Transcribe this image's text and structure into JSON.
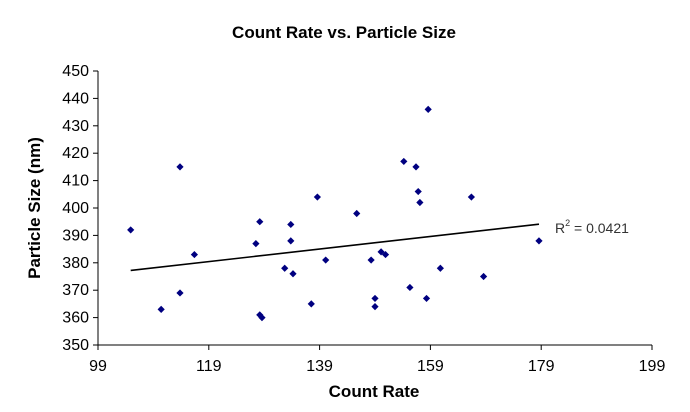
{
  "chart_data": {
    "type": "scatter",
    "title": "Count Rate vs.  Particle Size",
    "xlabel": "Count Rate",
    "ylabel": "Particle Size (nm)",
    "xlim": [
      99,
      199
    ],
    "ylim": [
      350,
      450
    ],
    "xticks": [
      99,
      119,
      139,
      159,
      179,
      199
    ],
    "yticks": [
      350,
      360,
      370,
      380,
      390,
      400,
      410,
      420,
      430,
      440,
      450
    ],
    "grid": false,
    "marker_color": "#000080",
    "series": [
      {
        "points": [
          [
            104.9,
            392
          ],
          [
            110.4,
            363
          ],
          [
            113.8,
            415
          ],
          [
            113.8,
            369
          ],
          [
            116.4,
            383
          ],
          [
            127.5,
            387
          ],
          [
            128.2,
            395
          ],
          [
            128.2,
            361
          ],
          [
            128.6,
            360
          ],
          [
            132.7,
            378
          ],
          [
            133.8,
            394
          ],
          [
            133.8,
            388
          ],
          [
            134.2,
            376
          ],
          [
            137.5,
            365
          ],
          [
            138.6,
            404
          ],
          [
            140.1,
            381
          ],
          [
            145.7,
            398
          ],
          [
            148.3,
            381
          ],
          [
            149.0,
            367
          ],
          [
            149.0,
            364
          ],
          [
            150.1,
            384
          ],
          [
            150.9,
            383
          ],
          [
            154.2,
            417
          ],
          [
            155.3,
            371
          ],
          [
            156.4,
            415
          ],
          [
            156.8,
            406
          ],
          [
            157.1,
            402
          ],
          [
            158.3,
            367
          ],
          [
            158.6,
            436
          ],
          [
            160.8,
            378
          ],
          [
            166.4,
            404
          ],
          [
            168.6,
            375
          ],
          [
            178.6,
            388
          ]
        ]
      }
    ],
    "trendline": {
      "type": "linear",
      "x": [
        104.9,
        178.6
      ],
      "y": [
        377.2,
        394.1
      ],
      "color": "#000000"
    },
    "annotation": {
      "base": "R",
      "sup": "2",
      "rest": " = 0.0421"
    }
  }
}
